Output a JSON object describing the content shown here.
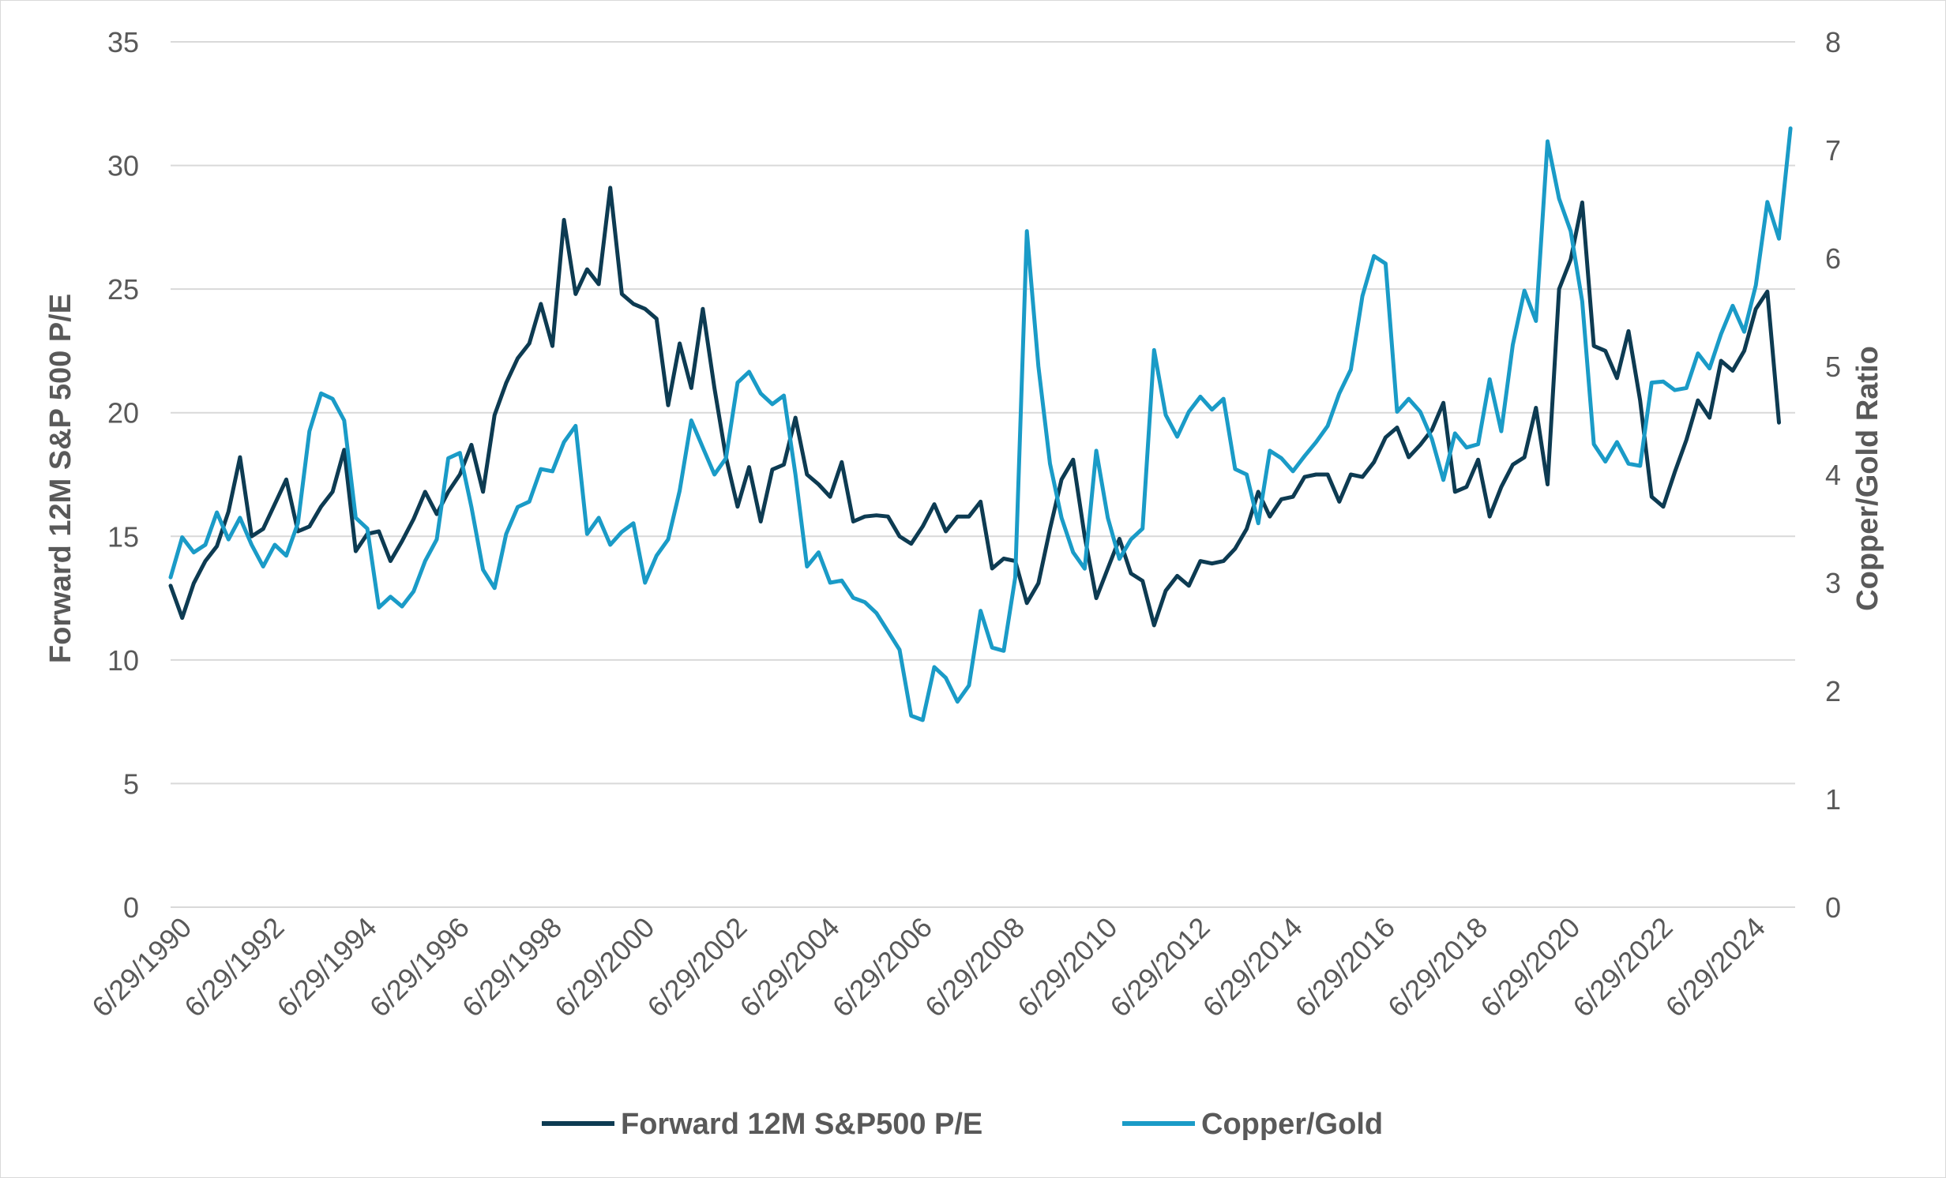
{
  "chart_data": {
    "type": "line",
    "title": "",
    "x_tick_labels": [
      "6/29/1990",
      "6/29/1992",
      "6/29/1994",
      "6/29/1996",
      "6/29/1998",
      "6/29/2000",
      "6/29/2002",
      "6/29/2004",
      "6/29/2006",
      "6/29/2008",
      "6/29/2010",
      "6/29/2012",
      "6/29/2014",
      "6/29/2016",
      "6/29/2018",
      "6/29/2020",
      "6/29/2022",
      "6/29/2024"
    ],
    "x_range": [
      1990.0,
      2025.1
    ],
    "ylabel_left": "Forward 12M S&P 500 P/E",
    "ylabel_right": "Copper/Gold Ratio",
    "ylim_left": [
      0,
      35
    ],
    "ylim_right": [
      0,
      8
    ],
    "yticks_left": [
      "0",
      "5",
      "10",
      "15",
      "20",
      "25",
      "30",
      "35"
    ],
    "yticks_right": [
      "0",
      "1",
      "2",
      "3",
      "4",
      "5",
      "6",
      "7",
      "8"
    ],
    "grid": "horizontal",
    "legend_position": "bottom",
    "colors": {
      "pe": "#0d3b52",
      "copper_gold": "#1a9bc7",
      "grid": "#d9d9d9",
      "text": "#595959"
    },
    "series": [
      {
        "name": "Forward 12M S&P500 P/E",
        "axis": "left",
        "color": "#0d3b52",
        "points": [
          [
            1990.0,
            13.0
          ],
          [
            1990.25,
            11.7
          ],
          [
            1990.5,
            13.1
          ],
          [
            1990.75,
            14.0
          ],
          [
            1991.0,
            14.6
          ],
          [
            1991.25,
            16.0
          ],
          [
            1991.5,
            18.2
          ],
          [
            1991.75,
            15.0
          ],
          [
            1992.0,
            15.3
          ],
          [
            1992.25,
            16.3
          ],
          [
            1992.5,
            17.3
          ],
          [
            1992.75,
            15.2
          ],
          [
            1993.0,
            15.4
          ],
          [
            1993.25,
            16.2
          ],
          [
            1993.5,
            16.8
          ],
          [
            1993.75,
            18.5
          ],
          [
            1994.0,
            14.4
          ],
          [
            1994.25,
            15.1
          ],
          [
            1994.5,
            15.2
          ],
          [
            1994.75,
            14.0
          ],
          [
            1995.0,
            14.8
          ],
          [
            1995.25,
            15.7
          ],
          [
            1995.5,
            16.8
          ],
          [
            1995.75,
            15.9
          ],
          [
            1996.0,
            16.8
          ],
          [
            1996.25,
            17.5
          ],
          [
            1996.5,
            18.7
          ],
          [
            1996.75,
            16.8
          ],
          [
            1997.0,
            19.9
          ],
          [
            1997.25,
            21.2
          ],
          [
            1997.5,
            22.2
          ],
          [
            1997.75,
            22.8
          ],
          [
            1998.0,
            24.4
          ],
          [
            1998.25,
            22.7
          ],
          [
            1998.5,
            27.8
          ],
          [
            1998.75,
            24.8
          ],
          [
            1999.0,
            25.8
          ],
          [
            1999.25,
            25.2
          ],
          [
            1999.5,
            29.1
          ],
          [
            1999.75,
            24.8
          ],
          [
            2000.0,
            24.4
          ],
          [
            2000.25,
            24.2
          ],
          [
            2000.5,
            23.8
          ],
          [
            2000.75,
            20.3
          ],
          [
            2001.0,
            22.8
          ],
          [
            2001.25,
            21.0
          ],
          [
            2001.5,
            24.2
          ],
          [
            2001.75,
            21.0
          ],
          [
            2002.0,
            18.2
          ],
          [
            2002.25,
            16.2
          ],
          [
            2002.5,
            17.8
          ],
          [
            2002.75,
            15.6
          ],
          [
            2003.0,
            17.7
          ],
          [
            2003.25,
            17.9
          ],
          [
            2003.5,
            19.8
          ],
          [
            2003.75,
            17.5
          ],
          [
            2004.0,
            17.1
          ],
          [
            2004.25,
            16.6
          ],
          [
            2004.5,
            18.0
          ],
          [
            2004.75,
            15.6
          ],
          [
            2005.0,
            15.8
          ],
          [
            2005.25,
            15.85
          ],
          [
            2005.5,
            15.8
          ],
          [
            2005.75,
            15.0
          ],
          [
            2006.0,
            14.7
          ],
          [
            2006.25,
            15.4
          ],
          [
            2006.5,
            16.3
          ],
          [
            2006.75,
            15.2
          ],
          [
            2007.0,
            15.8
          ],
          [
            2007.25,
            15.8
          ],
          [
            2007.5,
            16.4
          ],
          [
            2007.75,
            13.7
          ],
          [
            2008.0,
            14.1
          ],
          [
            2008.25,
            14.0
          ],
          [
            2008.5,
            12.3
          ],
          [
            2008.75,
            13.1
          ],
          [
            2009.0,
            15.3
          ],
          [
            2009.25,
            17.3
          ],
          [
            2009.5,
            18.1
          ],
          [
            2009.75,
            15.0
          ],
          [
            2010.0,
            12.5
          ],
          [
            2010.25,
            13.7
          ],
          [
            2010.5,
            14.9
          ],
          [
            2010.75,
            13.5
          ],
          [
            2011.0,
            13.2
          ],
          [
            2011.25,
            11.4
          ],
          [
            2011.5,
            12.8
          ],
          [
            2011.75,
            13.4
          ],
          [
            2012.0,
            13.0
          ],
          [
            2012.25,
            14.0
          ],
          [
            2012.5,
            13.9
          ],
          [
            2012.75,
            14.0
          ],
          [
            2013.0,
            14.5
          ],
          [
            2013.25,
            15.3
          ],
          [
            2013.5,
            16.8
          ],
          [
            2013.75,
            15.8
          ],
          [
            2014.0,
            16.5
          ],
          [
            2014.25,
            16.6
          ],
          [
            2014.5,
            17.4
          ],
          [
            2014.75,
            17.5
          ],
          [
            2015.0,
            17.5
          ],
          [
            2015.25,
            16.4
          ],
          [
            2015.5,
            17.5
          ],
          [
            2015.75,
            17.4
          ],
          [
            2016.0,
            18.0
          ],
          [
            2016.25,
            19.0
          ],
          [
            2016.5,
            19.4
          ],
          [
            2016.75,
            18.2
          ],
          [
            2017.0,
            18.7
          ],
          [
            2017.25,
            19.3
          ],
          [
            2017.5,
            20.4
          ],
          [
            2017.75,
            16.8
          ],
          [
            2018.0,
            17.0
          ],
          [
            2018.25,
            18.1
          ],
          [
            2018.5,
            15.8
          ],
          [
            2018.75,
            17.0
          ],
          [
            2019.0,
            17.9
          ],
          [
            2019.25,
            18.2
          ],
          [
            2019.5,
            20.2
          ],
          [
            2019.75,
            17.1
          ],
          [
            2020.0,
            25.0
          ],
          [
            2020.25,
            26.2
          ],
          [
            2020.5,
            28.5
          ],
          [
            2020.75,
            22.7
          ],
          [
            2021.0,
            22.5
          ],
          [
            2021.25,
            21.4
          ],
          [
            2021.5,
            23.3
          ],
          [
            2021.75,
            20.5
          ],
          [
            2022.0,
            16.6
          ],
          [
            2022.25,
            16.2
          ],
          [
            2022.5,
            17.6
          ],
          [
            2022.75,
            18.9
          ],
          [
            2023.0,
            20.5
          ],
          [
            2023.25,
            19.8
          ],
          [
            2023.5,
            22.1
          ],
          [
            2023.75,
            21.7
          ],
          [
            2024.0,
            22.5
          ],
          [
            2024.25,
            24.2
          ],
          [
            2024.5,
            24.9
          ],
          [
            2024.75,
            19.6
          ]
        ]
      },
      {
        "name": "Copper/Gold",
        "axis": "right",
        "color": "#1a9bc7",
        "points": [
          [
            1990.0,
            3.05
          ],
          [
            1990.25,
            3.42
          ],
          [
            1990.5,
            3.28
          ],
          [
            1990.75,
            3.35
          ],
          [
            1991.0,
            3.65
          ],
          [
            1991.25,
            3.4
          ],
          [
            1991.5,
            3.6
          ],
          [
            1991.75,
            3.35
          ],
          [
            1992.0,
            3.15
          ],
          [
            1992.25,
            3.35
          ],
          [
            1992.5,
            3.25
          ],
          [
            1992.75,
            3.55
          ],
          [
            1993.0,
            4.4
          ],
          [
            1993.25,
            4.75
          ],
          [
            1993.5,
            4.7
          ],
          [
            1993.75,
            4.5
          ],
          [
            1994.0,
            3.6
          ],
          [
            1994.25,
            3.5
          ],
          [
            1994.5,
            2.77
          ],
          [
            1994.75,
            2.87
          ],
          [
            1995.0,
            2.78
          ],
          [
            1995.25,
            2.92
          ],
          [
            1995.5,
            3.2
          ],
          [
            1995.75,
            3.4
          ],
          [
            1996.0,
            4.15
          ],
          [
            1996.25,
            4.2
          ],
          [
            1996.5,
            3.7
          ],
          [
            1996.75,
            3.12
          ],
          [
            1997.0,
            2.95
          ],
          [
            1997.25,
            3.45
          ],
          [
            1997.5,
            3.7
          ],
          [
            1997.75,
            3.75
          ],
          [
            1998.0,
            4.05
          ],
          [
            1998.25,
            4.03
          ],
          [
            1998.5,
            4.3
          ],
          [
            1998.75,
            4.45
          ],
          [
            1999.0,
            3.45
          ],
          [
            1999.25,
            3.6
          ],
          [
            1999.5,
            3.35
          ],
          [
            1999.75,
            3.47
          ],
          [
            2000.0,
            3.55
          ],
          [
            2000.25,
            3.0
          ],
          [
            2000.5,
            3.25
          ],
          [
            2000.75,
            3.4
          ],
          [
            2001.0,
            3.85
          ],
          [
            2001.25,
            4.5
          ],
          [
            2001.5,
            4.25
          ],
          [
            2001.75,
            4.0
          ],
          [
            2002.0,
            4.15
          ],
          [
            2002.25,
            4.85
          ],
          [
            2002.5,
            4.95
          ],
          [
            2002.75,
            4.75
          ],
          [
            2003.0,
            4.65
          ],
          [
            2003.25,
            4.73
          ],
          [
            2003.5,
            4.0
          ],
          [
            2003.75,
            3.15
          ],
          [
            2004.0,
            3.28
          ],
          [
            2004.25,
            3.0
          ],
          [
            2004.5,
            3.02
          ],
          [
            2004.75,
            2.86
          ],
          [
            2005.0,
            2.82
          ],
          [
            2005.25,
            2.72
          ],
          [
            2005.5,
            2.55
          ],
          [
            2005.75,
            2.38
          ],
          [
            2006.0,
            1.77
          ],
          [
            2006.25,
            1.73
          ],
          [
            2006.5,
            2.22
          ],
          [
            2006.75,
            2.12
          ],
          [
            2007.0,
            1.9
          ],
          [
            2007.25,
            2.05
          ],
          [
            2007.5,
            2.74
          ],
          [
            2007.75,
            2.4
          ],
          [
            2008.0,
            2.37
          ],
          [
            2008.25,
            3.05
          ],
          [
            2008.5,
            6.25
          ],
          [
            2008.75,
            5.0
          ],
          [
            2009.0,
            4.1
          ],
          [
            2009.25,
            3.6
          ],
          [
            2009.5,
            3.28
          ],
          [
            2009.75,
            3.13
          ],
          [
            2010.0,
            4.22
          ],
          [
            2010.25,
            3.6
          ],
          [
            2010.5,
            3.22
          ],
          [
            2010.75,
            3.4
          ],
          [
            2011.0,
            3.5
          ],
          [
            2011.25,
            5.15
          ],
          [
            2011.5,
            4.55
          ],
          [
            2011.75,
            4.35
          ],
          [
            2012.0,
            4.58
          ],
          [
            2012.25,
            4.72
          ],
          [
            2012.5,
            4.6
          ],
          [
            2012.75,
            4.7
          ],
          [
            2013.0,
            4.05
          ],
          [
            2013.25,
            4.0
          ],
          [
            2013.5,
            3.55
          ],
          [
            2013.75,
            4.22
          ],
          [
            2014.0,
            4.15
          ],
          [
            2014.25,
            4.03
          ],
          [
            2014.5,
            4.17
          ],
          [
            2014.75,
            4.3
          ],
          [
            2015.0,
            4.45
          ],
          [
            2015.25,
            4.75
          ],
          [
            2015.5,
            4.97
          ],
          [
            2015.75,
            5.65
          ],
          [
            2016.0,
            6.02
          ],
          [
            2016.25,
            5.95
          ],
          [
            2016.5,
            4.58
          ],
          [
            2016.75,
            4.7
          ],
          [
            2017.0,
            4.58
          ],
          [
            2017.25,
            4.33
          ],
          [
            2017.5,
            3.95
          ],
          [
            2017.75,
            4.38
          ],
          [
            2018.0,
            4.25
          ],
          [
            2018.25,
            4.28
          ],
          [
            2018.5,
            4.88
          ],
          [
            2018.75,
            4.4
          ],
          [
            2019.0,
            5.2
          ],
          [
            2019.25,
            5.7
          ],
          [
            2019.5,
            5.42
          ],
          [
            2019.75,
            7.08
          ],
          [
            2020.0,
            6.55
          ],
          [
            2020.25,
            6.25
          ],
          [
            2020.5,
            5.6
          ],
          [
            2020.75,
            4.28
          ],
          [
            2021.0,
            4.12
          ],
          [
            2021.25,
            4.3
          ],
          [
            2021.5,
            4.1
          ],
          [
            2021.75,
            4.08
          ],
          [
            2022.0,
            4.85
          ],
          [
            2022.25,
            4.86
          ],
          [
            2022.5,
            4.78
          ],
          [
            2022.75,
            4.8
          ],
          [
            2023.0,
            5.12
          ],
          [
            2023.25,
            4.98
          ],
          [
            2023.5,
            5.3
          ],
          [
            2023.75,
            5.56
          ],
          [
            2024.0,
            5.32
          ],
          [
            2024.25,
            5.75
          ],
          [
            2024.5,
            6.52
          ],
          [
            2024.75,
            6.18
          ],
          [
            2025.0,
            7.2
          ]
        ]
      }
    ]
  }
}
